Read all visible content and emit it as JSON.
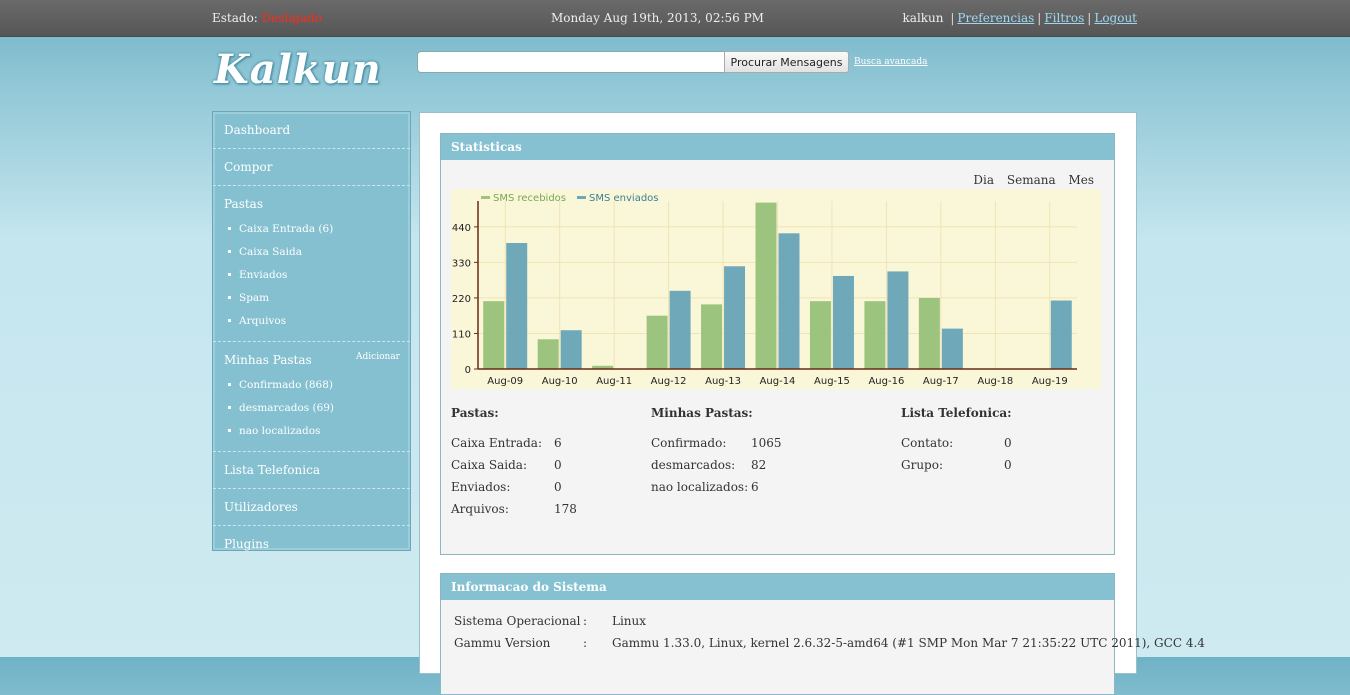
{
  "topbar": {
    "status_label": "Estado:",
    "status_value": "Desligado",
    "datetime": "Monday Aug 19th, 2013, 02:56 PM",
    "username": "kalkun",
    "links": [
      "Preferencias",
      "Filtros",
      "Logout"
    ]
  },
  "logo": {
    "text": "Kalkun"
  },
  "search": {
    "placeholder": "",
    "value": "",
    "button_label": "Procurar Mensagens",
    "advanced_label": "Busca avancada"
  },
  "sidebar": {
    "dashboard": "Dashboard",
    "compose": "Compor",
    "folders_title": "Pastas",
    "folders": [
      "Caixa Entrada (6)",
      "Caixa Saida",
      "Enviados",
      "Spam",
      "Arquivos"
    ],
    "my_folders_title": "Minhas Pastas",
    "my_folders_add": "Adicionar",
    "my_folders": [
      "Confirmado (868)",
      "desmarcados (69)",
      "nao localizados"
    ],
    "phonebook": "Lista Telefonica",
    "users": "Utilizadores",
    "plugins": "Plugins"
  },
  "stats_panel": {
    "title": "Statisticas",
    "range_links": [
      "Dia",
      "Semana",
      "Mes"
    ],
    "pastas": {
      "title": "Pastas:",
      "rows": [
        {
          "label": "Caixa Entrada:",
          "value": "6"
        },
        {
          "label": "Caixa Saida:",
          "value": "0"
        },
        {
          "label": "Enviados:",
          "value": "0"
        },
        {
          "label": "Arquivos:",
          "value": "178"
        }
      ]
    },
    "minhas_pastas": {
      "title": "Minhas Pastas:",
      "rows": [
        {
          "label": "Confirmado:",
          "value": "1065"
        },
        {
          "label": "desmarcados:",
          "value": "82"
        },
        {
          "label": "nao localizados:",
          "value": "6"
        }
      ]
    },
    "lista_telefonica": {
      "title": "Lista Telefonica:",
      "rows": [
        {
          "label": "Contato:",
          "value": "0"
        },
        {
          "label": "Grupo:",
          "value": "0"
        }
      ]
    }
  },
  "chart_data": {
    "type": "bar",
    "categories": [
      "Aug-09",
      "Aug-10",
      "Aug-11",
      "Aug-12",
      "Aug-13",
      "Aug-14",
      "Aug-15",
      "Aug-16",
      "Aug-17",
      "Aug-18",
      "Aug-19"
    ],
    "series": [
      {
        "name": "SMS recebidos",
        "color": "#9dc47e",
        "values": [
          210,
          92,
          10,
          165,
          200,
          515,
          210,
          210,
          220,
          0,
          0
        ]
      },
      {
        "name": "SMS enviados",
        "color": "#6fa8b8",
        "values": [
          390,
          120,
          0,
          242,
          318,
          420,
          288,
          302,
          125,
          0,
          212
        ]
      }
    ],
    "yticks": [
      0,
      110,
      220,
      330,
      440
    ],
    "ylim": [
      0,
      520
    ],
    "grid": true,
    "legend_position": "top-left",
    "background": "#faf7d9"
  },
  "system_panel": {
    "title": "Informacao do Sistema",
    "rows": [
      {
        "key": "Sistema Operacional",
        "sep": ":",
        "value": "Linux"
      },
      {
        "key": "Gammu Version",
        "sep": ":",
        "value": "Gammu 1.33.0, Linux, kernel 2.6.32-5-amd64 (#1 SMP Mon Mar 7 21:35:22 UTC 2011), GCC 4.4"
      }
    ]
  }
}
